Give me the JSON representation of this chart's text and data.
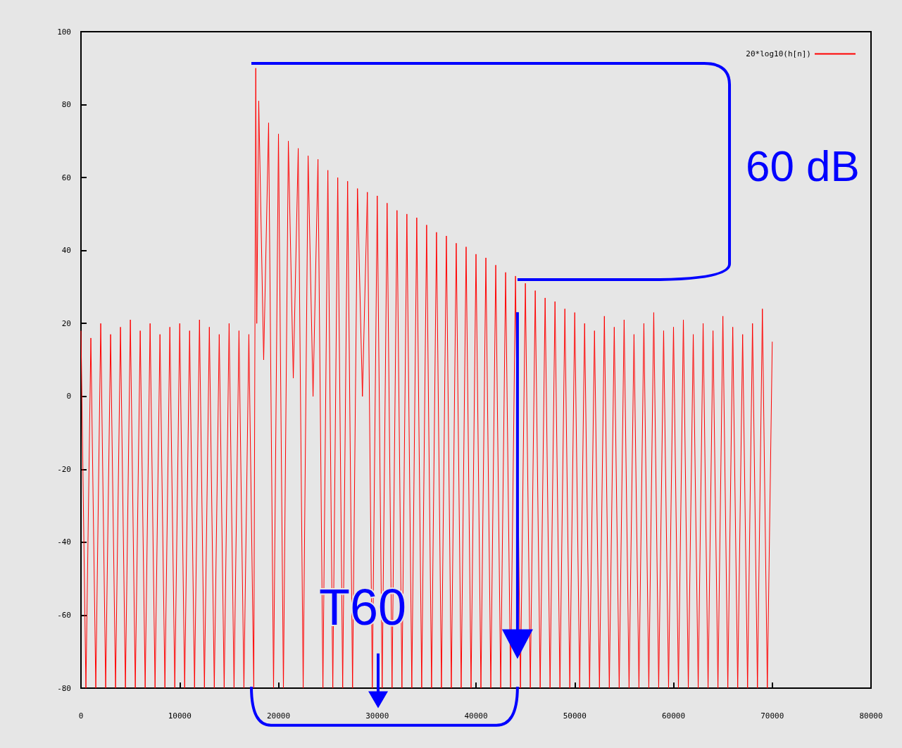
{
  "chart_data": {
    "type": "line",
    "annotations": [
      "60 dB",
      "T60"
    ],
    "legend": "top right",
    "grid": false,
    "marker": "none",
    "line_style": "solid",
    "xlim": [
      0,
      80000
    ],
    "xticks": [
      0,
      10000,
      20000,
      30000,
      40000,
      50000,
      60000,
      70000,
      80000
    ],
    "ylim": [
      -80,
      100
    ],
    "yticks": [
      -80,
      -60,
      -40,
      -20,
      0,
      20,
      40,
      60,
      80,
      100
    ],
    "series": [
      {
        "name": "20*log10(h[n])",
        "color": "#ff0000",
        "x": [
          0,
          500,
          1000,
          1500,
          2000,
          2500,
          3000,
          3500,
          4000,
          4500,
          5000,
          5500,
          6000,
          6500,
          7000,
          7500,
          8000,
          8500,
          9000,
          9500,
          10000,
          10500,
          11000,
          11500,
          12000,
          12500,
          13000,
          13500,
          14000,
          14500,
          15000,
          15500,
          16000,
          16500,
          17000,
          17500,
          17700,
          17800,
          18000,
          18500,
          19000,
          19500,
          20000,
          20500,
          21000,
          21500,
          22000,
          22500,
          23000,
          23500,
          24000,
          24500,
          25000,
          25500,
          26000,
          26500,
          27000,
          27500,
          28000,
          28500,
          29000,
          29500,
          30000,
          30500,
          31000,
          31500,
          32000,
          32500,
          33000,
          33500,
          34000,
          34500,
          35000,
          35500,
          36000,
          36500,
          37000,
          37500,
          38000,
          38500,
          39000,
          39500,
          40000,
          40500,
          41000,
          41500,
          42000,
          42500,
          43000,
          43500,
          44000,
          44500,
          45000,
          45500,
          46000,
          46500,
          47000,
          47500,
          48000,
          48500,
          49000,
          49500,
          50000,
          50500,
          51000,
          51500,
          52000,
          52500,
          53000,
          53500,
          54000,
          54500,
          55000,
          55500,
          56000,
          56500,
          57000,
          57500,
          58000,
          58500,
          59000,
          59500,
          60000,
          60500,
          61000,
          61500,
          62000,
          62500,
          63000,
          63500,
          64000,
          64500,
          65000,
          65500,
          66000,
          66500,
          67000,
          67500,
          68000,
          68500,
          69000,
          69500,
          70000
        ],
        "values": [
          18,
          -80,
          16,
          -80,
          20,
          -80,
          17,
          -80,
          19,
          -80,
          21,
          -80,
          18,
          -80,
          20,
          -80,
          17,
          -80,
          19,
          -80,
          20,
          -80,
          18,
          -80,
          21,
          -80,
          19,
          -80,
          17,
          -80,
          20,
          -80,
          18,
          -80,
          17,
          -80,
          90,
          20,
          81,
          10,
          75,
          -80,
          72,
          -80,
          70,
          5,
          68,
          -80,
          66,
          0,
          65,
          -80,
          62,
          -80,
          60,
          -80,
          59,
          -80,
          57,
          0,
          56,
          -80,
          55,
          -80,
          53,
          -80,
          51,
          -80,
          50,
          -80,
          49,
          -80,
          47,
          -80,
          45,
          -80,
          44,
          -80,
          42,
          -80,
          41,
          -80,
          39,
          -80,
          38,
          -80,
          36,
          -80,
          34,
          -80,
          33,
          -80,
          31,
          -80,
          29,
          -80,
          27,
          -80,
          26,
          -80,
          24,
          -80,
          23,
          -80,
          20,
          -80,
          18,
          -80,
          22,
          -80,
          19,
          -80,
          21,
          -80,
          17,
          -80,
          20,
          -80,
          23,
          -80,
          18,
          -80,
          19,
          -80,
          21,
          -80,
          17,
          -80,
          20,
          -80,
          18,
          -80,
          22,
          -80,
          19,
          -80,
          17,
          -80,
          20,
          -80,
          24,
          -80,
          15
        ]
      }
    ]
  }
}
